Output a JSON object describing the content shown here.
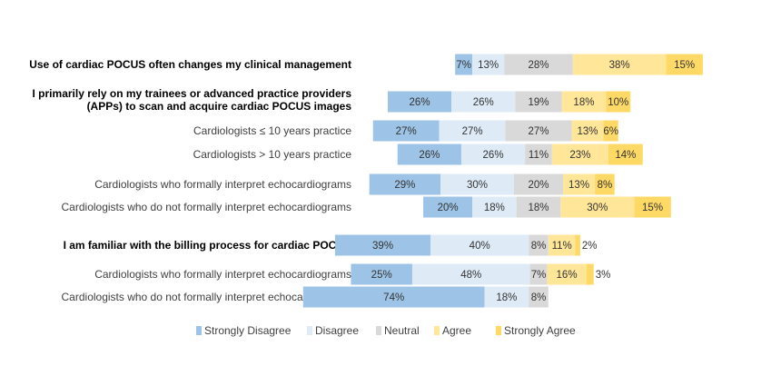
{
  "chart_data": {
    "type": "bar",
    "subtype": "diverging-stacked-horizontal",
    "legend_position": "bottom",
    "grid": false,
    "series": [
      {
        "name": "Strongly Disagree",
        "color": "#9dc3e6"
      },
      {
        "name": "Disagree",
        "color": "#deebf7"
      },
      {
        "name": "Neutral",
        "color": "#d9d9d9"
      },
      {
        "name": "Agree",
        "color": "#ffe699"
      },
      {
        "name": "Strongly Agree",
        "color": "#ffd966"
      }
    ],
    "rows": [
      {
        "label": "Use of cardiac POCUS often changes my clinical management",
        "bold": true,
        "values": [
          7,
          13,
          28,
          38,
          15
        ],
        "value_labels": [
          "7%",
          "13%",
          "28%",
          "38%",
          "15%"
        ]
      },
      {
        "label": "I primarily rely on my trainees or advanced practice providers",
        "label2": "(APPs) to scan and acquire cardiac POCUS images",
        "bold": true,
        "values": [
          26,
          26,
          19,
          18,
          10
        ],
        "value_labels": [
          "26%",
          "26%",
          "19%",
          "18%",
          "10%"
        ]
      },
      {
        "label": "Cardiologists  ≤ 10 years practice",
        "bold": false,
        "values": [
          27,
          27,
          27,
          13,
          6
        ],
        "value_labels": [
          "27%",
          "27%",
          "27%",
          "13%",
          "6%"
        ]
      },
      {
        "label": "Cardiologists > 10 years practice",
        "bold": false,
        "values": [
          26,
          26,
          11,
          23,
          14
        ],
        "value_labels": [
          "26%",
          "26%",
          "11%",
          "23%",
          "14%"
        ]
      },
      {
        "label": "Cardiologists who formally interpret echocardiograms",
        "bold": false,
        "values": [
          29,
          30,
          20,
          13,
          8
        ],
        "value_labels": [
          "29%",
          "30%",
          "20%",
          "13%",
          "8%"
        ]
      },
      {
        "label": "Cardiologists who do not formally interpret echocardiograms",
        "bold": false,
        "values": [
          20,
          18,
          18,
          30,
          15
        ],
        "value_labels": [
          "20%",
          "18%",
          "18%",
          "30%",
          "15%"
        ]
      },
      {
        "label": "I am familiar with the billing process for cardiac POCUS",
        "bold": true,
        "values": [
          39,
          40,
          8,
          11,
          2
        ],
        "value_labels": [
          "39%",
          "40%",
          "8%",
          "11%",
          "2%"
        ]
      },
      {
        "label": "Cardiologists who formally interpret echocardiograms",
        "bold": false,
        "values": [
          25,
          48,
          7,
          16,
          3
        ],
        "value_labels": [
          "25%",
          "48%",
          "7%",
          "16%",
          "3%"
        ]
      },
      {
        "label": "Cardiologists who do not formally interpret echocardiograms",
        "bold": false,
        "values": [
          74,
          18,
          8,
          0,
          0
        ],
        "value_labels": [
          "74%",
          "18%",
          "8%",
          "",
          ""
        ]
      }
    ]
  }
}
